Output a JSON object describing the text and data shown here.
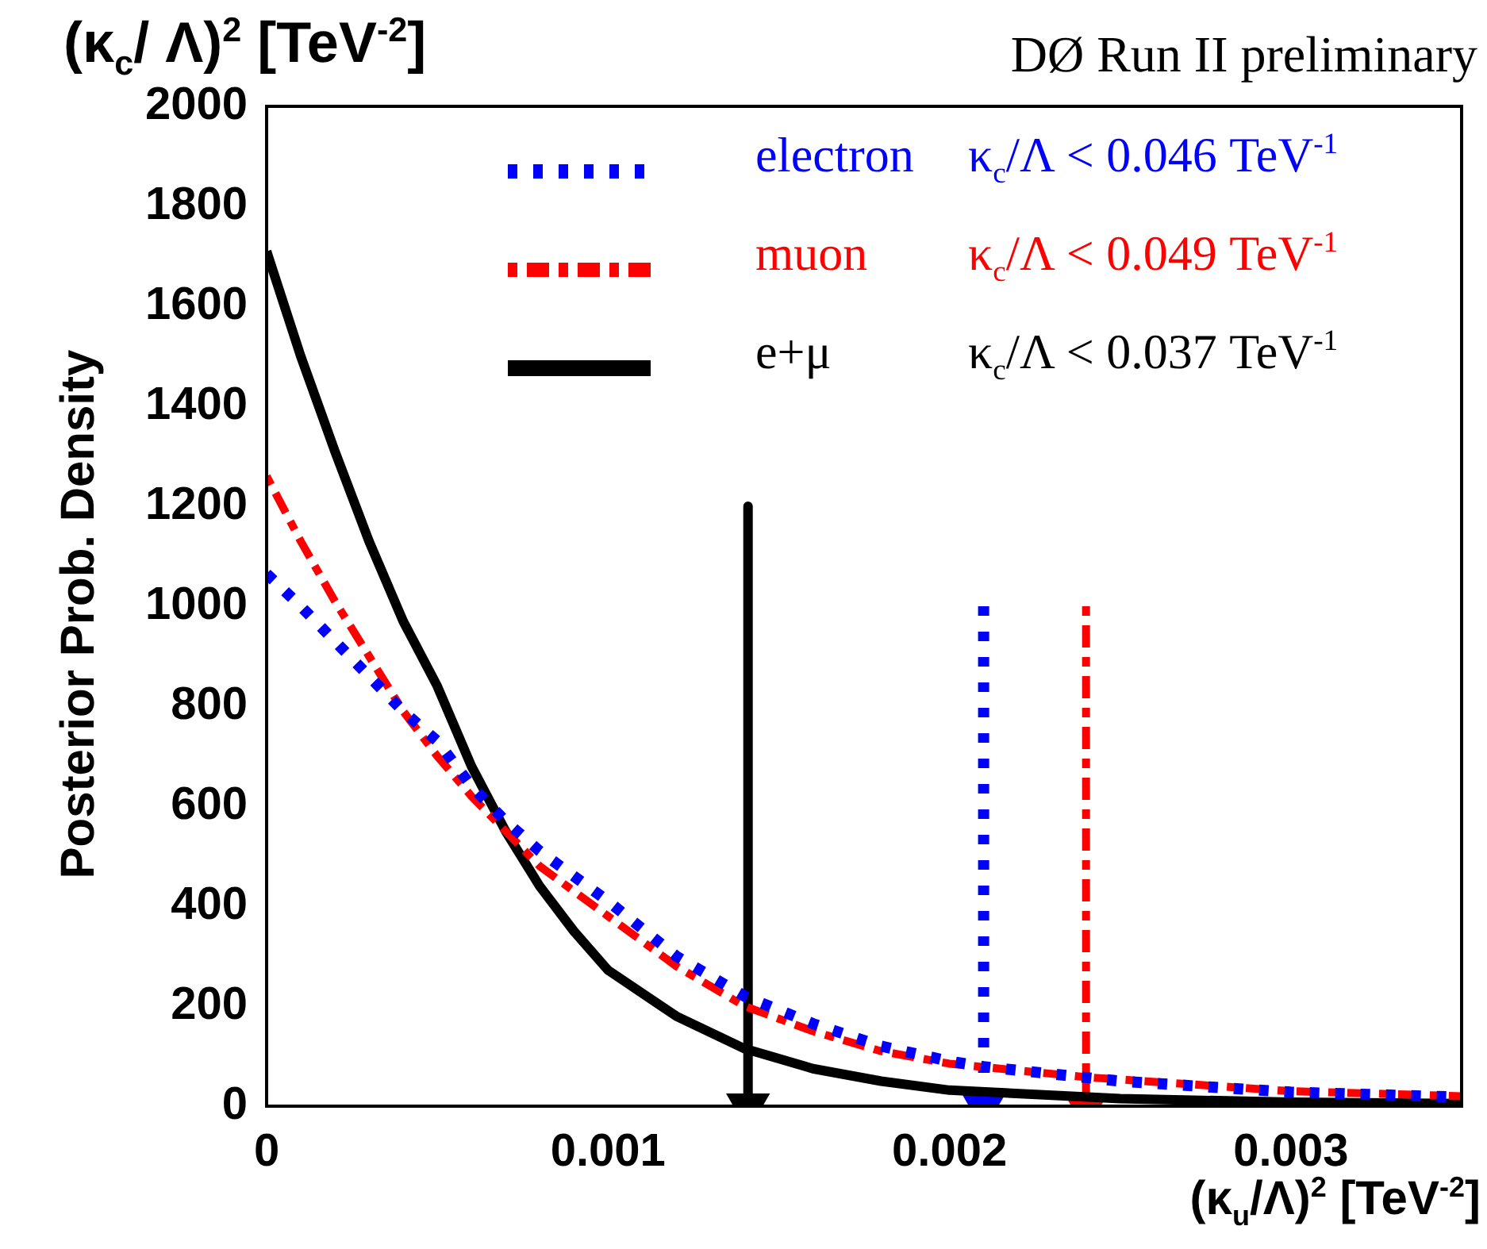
{
  "chart_data": {
    "type": "line",
    "title": "(κ$_{c}$/ Λ)$^{2}$ [TeV$^{-2}$]",
    "subtitle": "DØ Run II preliminary",
    "xlabel": "(κ$_{u}$/Λ)$^{2}$ [TeV$^{-2}$]",
    "ylabel": "Posterior Prob. Density",
    "xlim": [
      0,
      0.0035
    ],
    "xticks": [
      0,
      0.001,
      0.002,
      0.003
    ],
    "ylim": [
      0,
      2000
    ],
    "yticks": [
      0,
      200,
      400,
      600,
      800,
      1000,
      1200,
      1400,
      1600,
      1800,
      2000
    ],
    "grid": false,
    "legend": "top",
    "marker": "none",
    "annotations": [
      "κ$_{c}$/Λ < 0.046 TeV$^{-1}$",
      "κ$_{c}$/Λ < 0.049 TeV$^{-1}$",
      "κ$_{c}$/Λ < 0.037 TeV$^{-1}$"
    ],
    "series": [
      {
        "name": "electron",
        "color": "#0000ff",
        "line_style": "dotted",
        "x": [
          0,
          0.0001,
          0.0002,
          0.0003,
          0.0004,
          0.0005,
          0.0006,
          0.0007,
          0.0008,
          0.0009,
          0.001,
          0.0012,
          0.0014,
          0.0016,
          0.0018,
          0.002,
          0.0021,
          0.0025,
          0.003,
          0.0035
        ],
        "values": [
          1065,
          1000,
          930,
          860,
          790,
          730,
          640,
          570,
          510,
          460,
          410,
          300,
          220,
          165,
          120,
          90,
          79,
          50,
          28,
          18
        ]
      },
      {
        "name": "muon",
        "color": "#ff0000",
        "line_style": "dashdot",
        "x": [
          0,
          0.0001,
          0.0002,
          0.0003,
          0.0004,
          0.0005,
          0.0006,
          0.0007,
          0.0008,
          0.0009,
          0.001,
          0.0012,
          0.0014,
          0.0016,
          0.0018,
          0.002,
          0.0024,
          0.003,
          0.0035
        ],
        "values": [
          1260,
          1130,
          1010,
          900,
          790,
          700,
          620,
          550,
          480,
          430,
          380,
          280,
          200,
          150,
          110,
          85,
          58,
          30,
          20
        ]
      },
      {
        "name": "e+μ",
        "color": "#000000",
        "line_style": "solid",
        "x": [
          0,
          0.0001,
          0.0002,
          0.0003,
          0.0004,
          0.0005,
          0.0006,
          0.0007,
          0.0008,
          0.0009,
          0.001,
          0.0012,
          0.0014,
          0.0016,
          0.0018,
          0.002,
          0.0025,
          0.003,
          0.0035
        ],
        "values": [
          1710,
          1500,
          1310,
          1130,
          970,
          840,
          680,
          550,
          440,
          350,
          272,
          180,
          115,
          75,
          50,
          32,
          15,
          8,
          5
        ]
      },
      {
        "color": "#0000ff",
        "line_style": "dotted",
        "marker": "triangle",
        "x": [
          0.0021,
          0.0021
        ],
        "values": [
          1000,
          0
        ]
      },
      {
        "color": "#ff0000",
        "line_style": "dashdot",
        "marker": "triangle",
        "x": [
          0.0024,
          0.0024
        ],
        "values": [
          1000,
          0
        ]
      },
      {
        "color": "#000000",
        "line_style": "solid",
        "marker": "triangle",
        "x": [
          0.00141,
          0.00141
        ],
        "values": [
          1200,
          0
        ]
      }
    ]
  }
}
